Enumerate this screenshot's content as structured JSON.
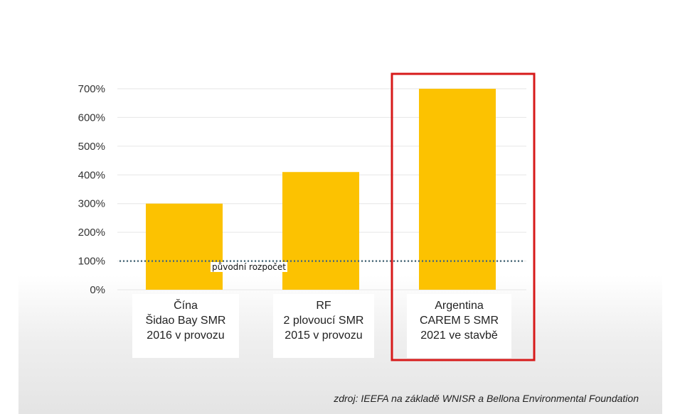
{
  "chart_data": {
    "type": "bar",
    "categories": [
      [
        "Čína",
        "Šidao Bay SMR",
        "2016 v provozu"
      ],
      [
        "RF",
        "2 plovoucí SMR",
        "2015 v provozu"
      ],
      [
        "Argentina",
        "CAREM 5 SMR",
        "2021 ve stavbě"
      ]
    ],
    "values": [
      300,
      410,
      700
    ],
    "ylim": [
      0,
      700
    ],
    "yticks": [
      0,
      100,
      200,
      300,
      400,
      500,
      600,
      700
    ],
    "ytick_labels": [
      "0%",
      "100%",
      "200%",
      "300%",
      "400%",
      "500%",
      "600%",
      "700%"
    ],
    "grid": true,
    "reference_line": {
      "value": 100,
      "label": "původní rozpočet",
      "style": "dotted"
    },
    "highlighted_category_index": 2,
    "colors": {
      "bar": "#FCC201",
      "highlight_box": "#D71A1A",
      "grid": "#e6e6e6",
      "reference_line": "#4a6a7a"
    }
  },
  "source": "zdroj: IEEFA na základě WNISR a Bellona Environmental Foundation"
}
